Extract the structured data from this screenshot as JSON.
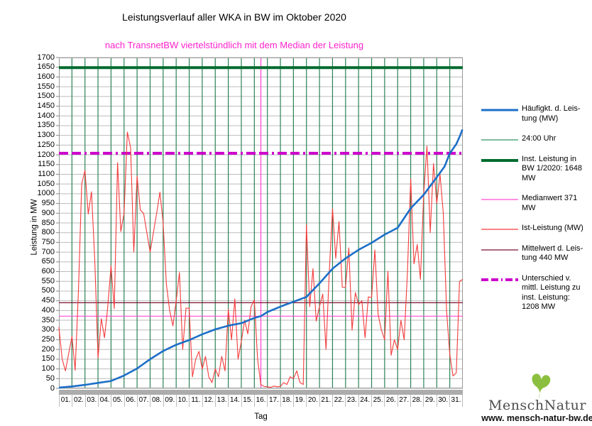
{
  "title": "Leistungsverlauf aller WKA in BW im Oktober 2020",
  "subtitle": "nach TransnetBW viertelstündlich mit dem Median der Leistung",
  "subtitle_color": "#ff22cc",
  "branding": {
    "name": "MenschNatur",
    "url": "www. mensch-natur-bw.de",
    "leaf_color": "#8cbf3f",
    "leaf_icon": "ginkgo-leaf"
  },
  "chart_data": {
    "type": "line",
    "xlabel": "Tag",
    "ylabel": "Leistung in MW",
    "x_tick_labels": [
      "01.",
      "02.",
      "03.",
      "04.",
      "05.",
      "06.",
      "07.",
      "08.",
      "09.",
      "10.",
      "11.",
      "12.",
      "13.",
      "14.",
      "15.",
      "16.",
      "17.",
      "18.",
      "19.",
      "20.",
      "21.",
      "22.",
      "23.",
      "24.",
      "25.",
      "26.",
      "27.",
      "28.",
      "29.",
      "30.",
      "31."
    ],
    "y_axis": {
      "min": 0,
      "max": 1700,
      "step": 50
    },
    "x_axis": {
      "min": 1,
      "max": 32
    },
    "grid": {
      "h_color": "#bcbcbc",
      "border_color": "#999999"
    },
    "day_grid_lines": {
      "label": "24:00 Uhr",
      "color": "#2b8256",
      "width": 1.2
    },
    "reference_lines": [
      {
        "name": "inst-leistung",
        "label": "Inst. Leistung in BW 1/2020: 1648 MW",
        "value": 1648,
        "color": "#006b2f",
        "width": 4
      },
      {
        "name": "unterschied",
        "label": "Unterschied v. mittl. Leistung zu inst. Leistung: 1208 MW",
        "value": 1208,
        "color": "#cc00cc",
        "width": 4,
        "dash": "13 5 13 5 3 5"
      },
      {
        "name": "mittelwert",
        "label": "Mittelwert d. Leistung 440 MW",
        "value": 440,
        "color": "#7a1230",
        "width": 1.2
      },
      {
        "name": "medianwert",
        "label": "Medianwert 371 MW",
        "value": 371,
        "color": "#ff4dd2",
        "width": 1.2
      },
      {
        "name": "median-vertikal",
        "label": "Median-Position (Monatsmitte)",
        "orientation": "vertical",
        "day": 16.5,
        "color": "#ff4dd2",
        "width": 1.3
      }
    ],
    "series": [
      {
        "name": "Ist-Leistung (MW)",
        "color": "#f43b3b",
        "width": 1.1,
        "x_start": 1,
        "x_step": 0.25,
        "values": [
          315,
          150,
          90,
          180,
          266,
          93,
          500,
          1050,
          1120,
          896,
          1010,
          660,
          157,
          358,
          260,
          419,
          630,
          410,
          1160,
          806,
          900,
          1317,
          1237,
          700,
          1090,
          916,
          900,
          800,
          700,
          800,
          900,
          1008,
          850,
          535,
          400,
          321,
          450,
          595,
          200,
          412,
          412,
          59,
          150,
          190,
          100,
          164,
          60,
          30,
          100,
          60,
          164,
          90,
          406,
          250,
          460,
          150,
          241,
          350,
          280,
          420,
          455,
          150,
          20,
          10,
          8,
          5,
          12,
          8,
          10,
          30,
          20,
          60,
          50,
          90,
          30,
          20,
          840,
          420,
          615,
          346,
          420,
          485,
          200,
          600,
          923,
          668,
          857,
          520,
          520,
          722,
          299,
          492,
          430,
          450,
          260,
          470,
          467,
          711,
          380,
          300,
          250,
          602,
          170,
          250,
          200,
          350,
          250,
          600,
          1076,
          640,
          740,
          560,
          1000,
          1245,
          800,
          1155,
          950,
          1100,
          900,
          400,
          175,
          64,
          80,
          550,
          560
        ]
      },
      {
        "name": "Häufigkt. d. Leistung (MW)",
        "color": "#1c6fc8",
        "width": 2.6,
        "points": [
          [
            1,
            4
          ],
          [
            2,
            10
          ],
          [
            3,
            18
          ],
          [
            4,
            28
          ],
          [
            5,
            38
          ],
          [
            6,
            66
          ],
          [
            7,
            102
          ],
          [
            8,
            150
          ],
          [
            9,
            192
          ],
          [
            10,
            224
          ],
          [
            11,
            248
          ],
          [
            12,
            278
          ],
          [
            13,
            303
          ],
          [
            14,
            322
          ],
          [
            15,
            335
          ],
          [
            16,
            362
          ],
          [
            16.5,
            371
          ],
          [
            17,
            392
          ],
          [
            18,
            420
          ],
          [
            19,
            445
          ],
          [
            20,
            470
          ],
          [
            21,
            540
          ],
          [
            22,
            615
          ],
          [
            23,
            668
          ],
          [
            24,
            712
          ],
          [
            25,
            748
          ],
          [
            26,
            790
          ],
          [
            27,
            825
          ],
          [
            28,
            925
          ],
          [
            29,
            995
          ],
          [
            30,
            1085
          ],
          [
            30.6,
            1140
          ],
          [
            31,
            1207
          ],
          [
            31.5,
            1255
          ],
          [
            31.8,
            1300
          ],
          [
            31.97,
            1330
          ]
        ]
      }
    ],
    "legend_position": "right",
    "legend": {
      "items": [
        {
          "label": "Häufigkt. d. Leis-\ntung (MW)",
          "color": "#1c6fc8",
          "width": 3
        },
        {
          "label": "24:00 Uhr",
          "color": "#2e9268",
          "width": 1.2
        },
        {
          "label": "Inst. Leistung in\nBW 1/2020: 1648\nMW",
          "color": "#006b2f",
          "width": 4
        },
        {
          "label": "Medianwert 371\nMW",
          "color": "#ff4dd2",
          "width": 1.2
        },
        {
          "label": "Ist-Leistung (MW)",
          "color": "#f43b3b",
          "width": 1.2
        },
        {
          "label": "Mittelwert d. Leis-\ntung 440 MW",
          "color": "#7a1230",
          "width": 1.2
        },
        {
          "label": "Unterschied v.\nmittl. Leistung zu\ninst. Leistung:\n1208 MW",
          "color": "#cc00cc",
          "width": 4,
          "dash": "10 4 10 4 2 4"
        }
      ]
    }
  }
}
